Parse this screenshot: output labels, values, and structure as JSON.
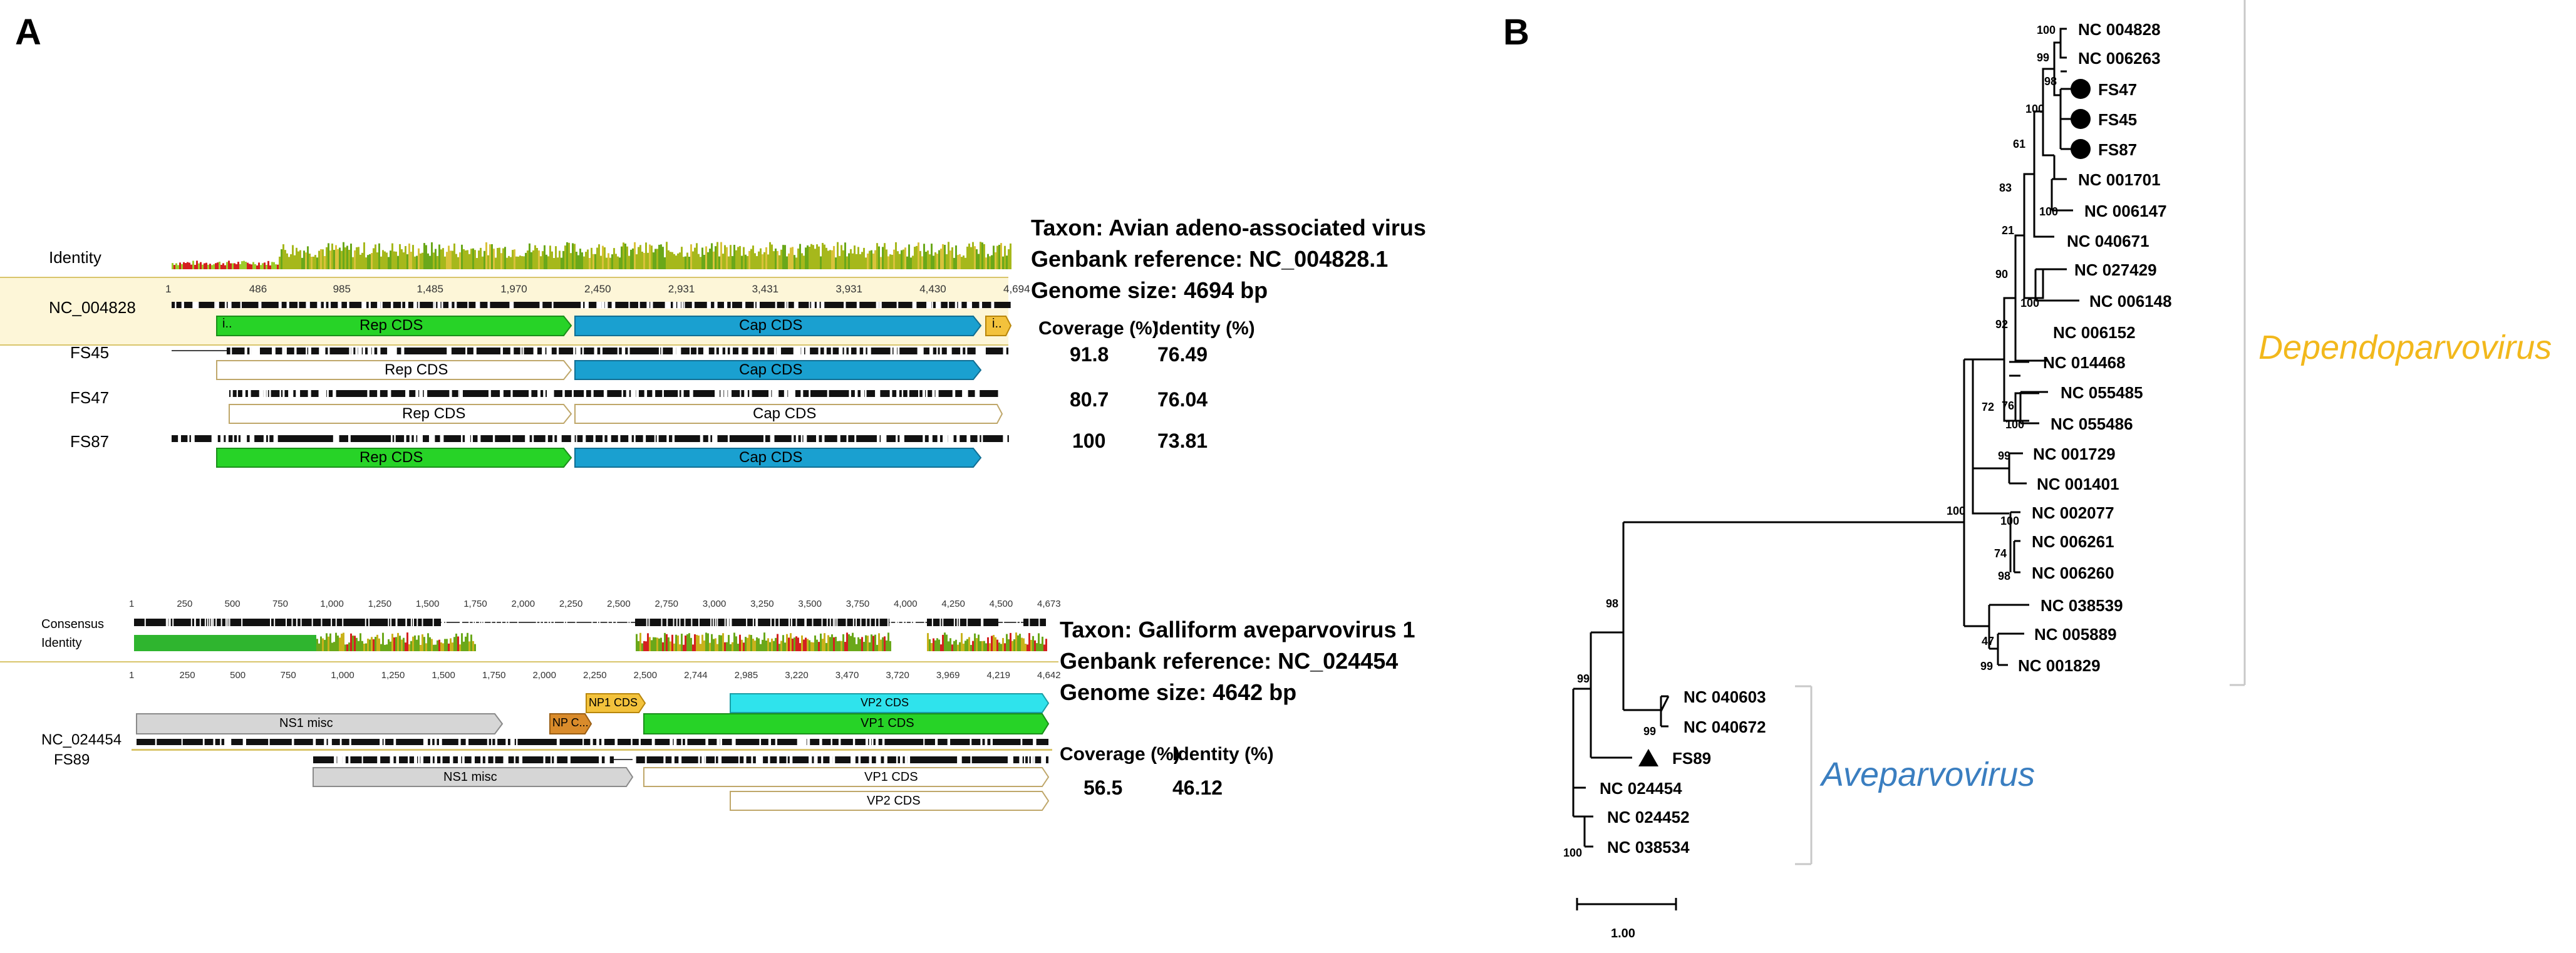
{
  "panel_a": {
    "letter": "A",
    "top": {
      "identity_label": "Identity",
      "ref_label": "NC_004828",
      "ticks": [
        "1",
        "486",
        "985",
        "1,485",
        "1,970",
        "2,450",
        "2,931",
        "3,431",
        "3,931",
        "4,430",
        "4,694"
      ],
      "ref_small_labels": [
        "i..",
        "i.."
      ],
      "info": {
        "taxon": "Taxon: Avian adeno-associated virus",
        "genbank": "Genbank reference: NC_004828.1",
        "genome": "Genome size: 4694 bp"
      },
      "col_coverage": "Coverage (%)",
      "col_identity": "Identity (%)",
      "samples": [
        {
          "name": "FS45",
          "coverage": "91.8",
          "identity": "76.49",
          "rep": "Rep CDS",
          "cap": "Cap CDS"
        },
        {
          "name": "FS47",
          "coverage": "80.7",
          "identity": "76.04",
          "rep": "Rep CDS",
          "cap": "Cap CDS"
        },
        {
          "name": "FS87",
          "coverage": "100",
          "identity": "73.81",
          "rep": "Rep CDS",
          "cap": "Cap CDS"
        }
      ],
      "ref_rep": "Rep CDS",
      "ref_cap": "Cap CDS"
    },
    "bottom": {
      "consensus_label": "Consensus",
      "identity_label": "Identity",
      "consensus_ticks": [
        "1",
        "250",
        "500",
        "750",
        "1,000",
        "1,250",
        "1,500",
        "1,750",
        "2,000",
        "2,250",
        "2,500",
        "2,750",
        "3,000",
        "3,250",
        "3,500",
        "3,750",
        "4,000",
        "4,250",
        "4,500",
        "4,673"
      ],
      "ref_ticks": [
        "1",
        "250",
        "500",
        "750",
        "1,000",
        "1,250",
        "1,500",
        "1,750",
        "2,000",
        "2,250",
        "2,500",
        "2,744",
        "2,985",
        "3,220",
        "3,470",
        "3,720",
        "3,969",
        "4,219",
        "4,642"
      ],
      "ref_label": "NC_024454",
      "sample_label": "FS89",
      "features": {
        "ns1": "NS1 misc",
        "np": "NP C...",
        "np1": "NP1 CDS",
        "vp2": "VP2 CDS",
        "vp1": "VP1 CDS"
      },
      "sample_features": {
        "ns1": "NS1 misc",
        "vp1": "VP1 CDS",
        "vp2": "VP2 CDS"
      },
      "info": {
        "taxon": "Taxon: Galliform aveparvovirus 1",
        "genbank": "Genbank reference: NC_024454",
        "genome": "Genome size: 4642 bp"
      },
      "col_coverage": "Coverage (%)",
      "col_identity": "Identity (%)",
      "coverage": "56.5",
      "identity": "46.12"
    }
  },
  "panel_b": {
    "letter": "B",
    "genus_depend": "Dependoparvovirus",
    "genus_ave": "Aveparvovirus",
    "depend_color": "#f2b81c",
    "ave_color": "#3a7ec0",
    "scale_label": "1.00",
    "leaves": [
      "NC 004828",
      "NC 006263",
      "FS47",
      "FS45",
      "FS87",
      "NC 001701",
      "NC 006147",
      "NC 040671",
      "NC 027429",
      "NC 006148",
      "NC 006152",
      "NC 014468",
      "NC 055485",
      "NC 055486",
      "NC 001729",
      "NC 001401",
      "NC 002077",
      "NC 006261",
      "NC 006260",
      "NC 038539",
      "NC 005889",
      "NC 001829",
      "NC 040603",
      "NC 040672",
      "FS89",
      "NC 024454",
      "NC 024452",
      "NC 038534"
    ],
    "bootstraps": [
      "100",
      "99",
      "98",
      "100",
      "61",
      "83",
      "100",
      "21",
      "90",
      "100",
      "92",
      "76",
      "72",
      "100",
      "99",
      "100",
      "74",
      "98",
      "47",
      "99",
      "100",
      "98",
      "99",
      "99",
      "100"
    ]
  }
}
